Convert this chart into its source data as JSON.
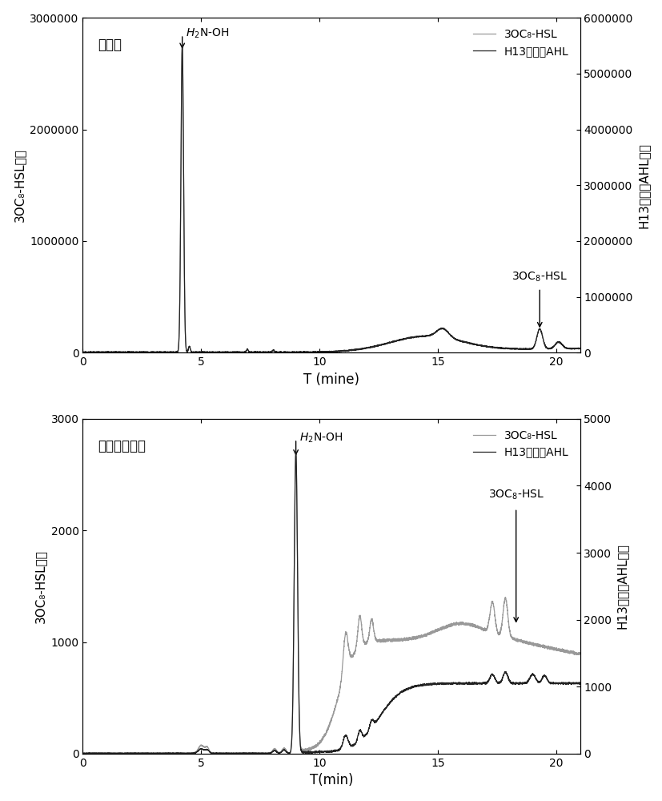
{
  "panel1": {
    "title": "全扫描",
    "xlabel": "T (mine)",
    "ylabel_left": "3OC₈-HSL丰度",
    "ylabel_right": "H13产生的AHL丰度",
    "ylim_left": [
      0,
      3000000
    ],
    "ylim_right": [
      0,
      6000000
    ],
    "xlim": [
      0,
      21
    ],
    "yticks_left": [
      0,
      1000000,
      2000000,
      3000000
    ],
    "yticks_right": [
      0,
      1000000,
      2000000,
      3000000,
      4000000,
      5000000,
      6000000
    ],
    "xticks": [
      0,
      5,
      10,
      15,
      20
    ],
    "ann1_x": 4.2,
    "ann1_text": "H₂N-OH",
    "ann2_x": 19.3,
    "ann2_text": "3OC₈-HSL",
    "legend1": "3OC₈-HSL",
    "legend2": "H13产生的AHL",
    "line1_color": "#999999",
    "line2_color": "#222222"
  },
  "panel2": {
    "title": "选择离子扫描",
    "xlabel": "T(min)",
    "ylabel_left": "3OC₈-HSL丰度",
    "ylabel_right": "H13产生的AHL丰度",
    "ylim_left": [
      0,
      3000
    ],
    "ylim_right": [
      0,
      5000
    ],
    "xlim": [
      0,
      21
    ],
    "yticks_left": [
      0,
      1000,
      2000,
      3000
    ],
    "yticks_right": [
      0,
      1000,
      2000,
      3000,
      4000,
      5000
    ],
    "xticks": [
      0,
      5,
      10,
      15,
      20
    ],
    "ann1_x": 9.0,
    "ann1_text": "H₂N-OH",
    "ann2_x": 18.3,
    "ann2_text": "3OC₈-HSL",
    "legend1": "3OC₈-HSL",
    "legend2": "H13产生的AHL",
    "line1_color": "#999999",
    "line2_color": "#222222"
  },
  "background_color": "#ffffff"
}
